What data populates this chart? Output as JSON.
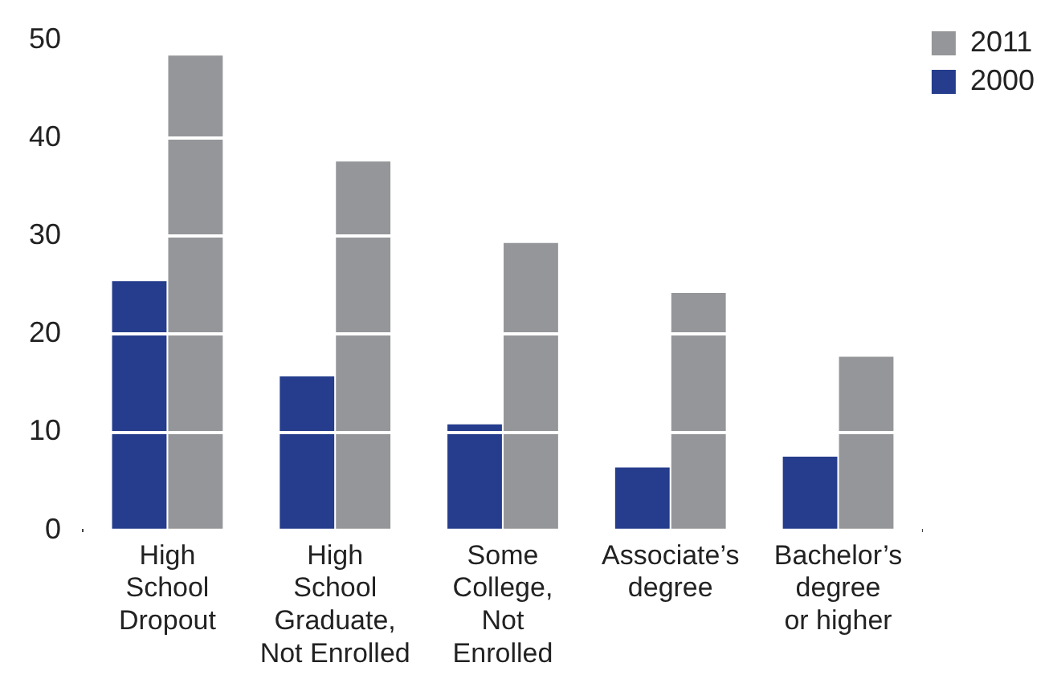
{
  "chart_data": {
    "type": "bar",
    "categories": [
      "High\nSchool\nDropout",
      "High\nSchool\nGraduate,\nNot Enrolled",
      "Some\nCollege,\nNot\nEnrolled",
      "Associate’s\ndegree",
      "Bachelor’s\ndegree\nor higher"
    ],
    "series": [
      {
        "name": "2000",
        "color": "#253d8c",
        "values": [
          25.4,
          15.7,
          10.8,
          6.4,
          7.5
        ]
      },
      {
        "name": "2011",
        "color": "#959699",
        "values": [
          48.4,
          37.6,
          29.3,
          24.2,
          17.7
        ]
      }
    ],
    "ylim": [
      0,
      50
    ],
    "yticks": [
      0,
      10,
      20,
      30,
      40,
      50
    ],
    "grid": "y",
    "legend": "top right"
  }
}
